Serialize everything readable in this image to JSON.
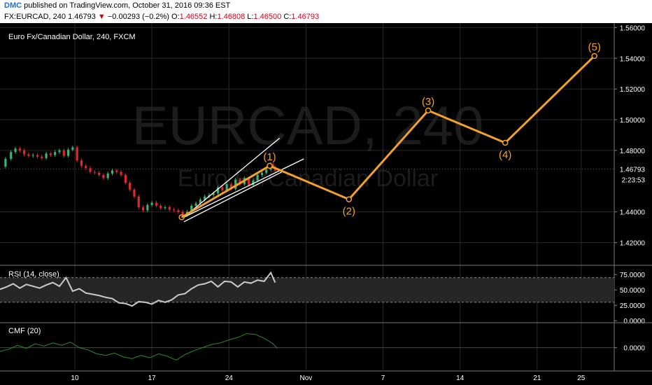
{
  "header": {
    "brand": "DMC",
    "published_text": " published on TradingView.com, October 31, 2016 09:36 EST",
    "symbol": "FX:EURCAD, 240",
    "last": "1.46793",
    "arrow": "▼",
    "change": "−0.00293 (−0.2%)",
    "o_label": "O:",
    "o_value": "1.46552",
    "h_label": "H:",
    "h_value": "1.46808",
    "l_label": "L:",
    "l_value": "1.46500",
    "c_label": "C:",
    "c_value": "1.46793"
  },
  "watermark": {
    "big": "EURCAD, 240",
    "small": "Euro Fx/Canadian Dollar"
  },
  "colors": {
    "background": "#000000",
    "up": "#3cb371",
    "down": "#e0282e",
    "wave": "#f4a12a",
    "trendline": "#ffffff",
    "rsi": "#cccccc",
    "cmf": "#2e8b2e",
    "grid": "#2a2a2a"
  },
  "chart_data": [
    {
      "type": "candlestick",
      "title": "Euro Fx/Canadian Dollar, 240, FXCM",
      "price_scale_labels": [
        "1.56000",
        "1.54000",
        "1.52000",
        "1.50000",
        "1.48000",
        "1.46793",
        "1.44000",
        "1.42000"
      ],
      "last_price_tag": "1.46793",
      "countdown_tag": "2:23:53",
      "ylim": [
        1.4066,
        1.5629
      ],
      "x_ticks": [
        "10",
        "17",
        "24",
        "Nov",
        "7",
        "14",
        "21",
        "25"
      ],
      "x_range_days": [
        3.2,
        28.3
      ],
      "price_path": [
        [
          3.2,
          1.4695
        ],
        [
          3.7,
          1.4745
        ],
        [
          4.2,
          1.479
        ],
        [
          4.6,
          1.4812
        ],
        [
          5.0,
          1.48
        ],
        [
          5.4,
          1.4775
        ],
        [
          5.8,
          1.4765
        ],
        [
          6.2,
          1.477
        ],
        [
          6.6,
          1.476
        ],
        [
          7.0,
          1.475
        ],
        [
          7.4,
          1.478
        ],
        [
          7.8,
          1.477
        ],
        [
          8.2,
          1.479
        ],
        [
          8.6,
          1.48
        ],
        [
          9.0,
          1.4765
        ],
        [
          9.4,
          1.4805
        ],
        [
          9.8,
          1.482
        ],
        [
          10.2,
          1.4735
        ],
        [
          10.6,
          1.47
        ],
        [
          11.0,
          1.4685
        ],
        [
          11.4,
          1.466
        ],
        [
          11.8,
          1.4655
        ],
        [
          12.2,
          1.464
        ],
        [
          12.6,
          1.462
        ],
        [
          13.0,
          1.465
        ],
        [
          13.4,
          1.467
        ],
        [
          13.8,
          1.466
        ],
        [
          14.2,
          1.464
        ],
        [
          14.6,
          1.459
        ],
        [
          15.0,
          1.4545
        ],
        [
          15.4,
          1.45
        ],
        [
          15.8,
          1.443
        ],
        [
          16.2,
          1.441
        ],
        [
          16.6,
          1.4445
        ],
        [
          17.0,
          1.446
        ],
        [
          17.4,
          1.444
        ],
        [
          17.8,
          1.4425
        ],
        [
          18.2,
          1.443
        ],
        [
          18.6,
          1.4415
        ],
        [
          19.0,
          1.441
        ],
        [
          19.4,
          1.44
        ],
        [
          19.8,
          1.438
        ],
        [
          20.2,
          1.44
        ],
        [
          20.6,
          1.444
        ],
        [
          21.0,
          1.4455
        ],
        [
          21.4,
          1.448
        ],
        [
          21.8,
          1.45
        ],
        [
          22.2,
          1.451
        ],
        [
          22.6,
          1.452
        ],
        [
          23.0,
          1.456
        ],
        [
          23.4,
          1.454
        ],
        [
          23.8,
          1.458
        ],
        [
          24.2,
          1.455
        ],
        [
          24.6,
          1.461
        ],
        [
          25.0,
          1.458
        ],
        [
          25.4,
          1.462
        ],
        [
          25.8,
          1.4575
        ],
        [
          26.2,
          1.4605
        ],
        [
          26.6,
          1.464
        ],
        [
          27.0,
          1.4655
        ],
        [
          27.4,
          1.4675
        ],
        [
          27.8,
          1.471
        ],
        [
          28.0,
          1.469
        ],
        [
          28.2,
          1.467
        ]
      ],
      "annotations": {
        "wave_line": [
          [
            19.7,
            1.4365
          ],
          [
            27.7,
            1.47
          ],
          [
            34.9,
            1.4482
          ],
          [
            42.1,
            1.506
          ],
          [
            49.1,
            1.485
          ],
          [
            57.2,
            1.5415
          ]
        ],
        "wave_labels": [
          {
            "label": "(1)",
            "x": 27.7,
            "y": 1.47
          },
          {
            "label": "(2)",
            "x": 34.9,
            "y": 1.4482
          },
          {
            "label": "(3)",
            "x": 42.1,
            "y": 1.506
          },
          {
            "label": "(4)",
            "x": 49.1,
            "y": 1.485
          },
          {
            "label": "(5)",
            "x": 57.2,
            "y": 1.5415
          }
        ],
        "trendlines": [
          [
            [
              19.9,
              1.4365
            ],
            [
              28.6,
              1.488
            ]
          ],
          [
            [
              19.9,
              1.4365
            ],
            [
              30.8,
              1.4745
            ]
          ],
          [
            [
              19.9,
              1.4335
            ],
            [
              28.8,
              1.466
            ]
          ]
        ]
      }
    },
    {
      "type": "line",
      "title": "RSI (14, close)",
      "scale_labels": [
        "75.0000",
        "50.0000",
        "25.0000",
        "0.0000"
      ],
      "ylim": [
        -2,
        90
      ],
      "band": [
        30,
        70
      ],
      "x": [
        3.2,
        3.8,
        4.4,
        5.0,
        5.6,
        6.2,
        6.8,
        7.4,
        8.0,
        8.6,
        9.2,
        9.8,
        10.4,
        11.0,
        11.6,
        12.2,
        12.8,
        13.4,
        14.0,
        14.6,
        15.2,
        15.8,
        16.4,
        17.0,
        17.6,
        18.2,
        18.8,
        19.4,
        20.0,
        20.6,
        21.2,
        21.8,
        22.4,
        23.0,
        23.6,
        24.2,
        24.8,
        25.4,
        26.0,
        26.6,
        27.2,
        27.8,
        28.2
      ],
      "values": [
        51,
        55,
        60,
        53,
        59,
        56,
        53,
        58,
        62,
        56,
        70,
        48,
        52,
        45,
        43,
        41,
        38,
        36,
        29,
        28,
        24,
        31,
        30,
        27,
        33,
        30,
        34,
        42,
        44,
        52,
        58,
        60,
        64,
        55,
        64,
        63,
        55,
        63,
        61,
        66,
        64,
        78,
        62
      ]
    },
    {
      "type": "line",
      "title": "CMF (20)",
      "scale_labels": [
        "0.0000"
      ],
      "ylim": [
        -0.3,
        0.32
      ],
      "x": [
        3.2,
        4.0,
        4.8,
        5.6,
        6.4,
        7.2,
        8.0,
        8.8,
        9.6,
        10.4,
        11.2,
        12.0,
        12.8,
        13.6,
        14.4,
        15.2,
        16.0,
        16.8,
        17.6,
        18.4,
        19.2,
        20.0,
        20.8,
        21.6,
        22.4,
        23.2,
        24.0,
        24.8,
        25.6,
        26.4,
        27.2,
        28.0,
        28.4
      ],
      "values": [
        -0.05,
        -0.02,
        0.03,
        -0.01,
        0.05,
        0.02,
        0.06,
        0.03,
        0.07,
        0.0,
        -0.03,
        -0.08,
        -0.1,
        -0.07,
        -0.12,
        -0.14,
        -0.1,
        -0.13,
        -0.08,
        -0.11,
        -0.16,
        -0.09,
        -0.04,
        0.0,
        0.04,
        0.06,
        0.1,
        0.13,
        0.18,
        0.17,
        0.12,
        0.05,
        -0.01
      ]
    }
  ]
}
